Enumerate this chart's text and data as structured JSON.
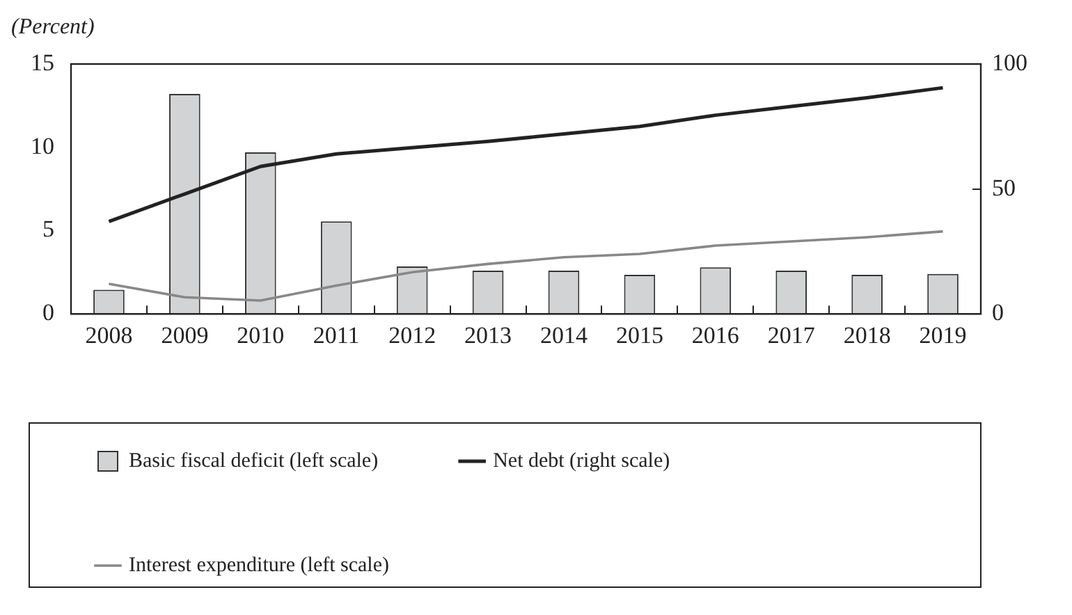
{
  "chart_data": {
    "type": "bar",
    "ylabel": "(Percent)",
    "categories": [
      "2008",
      "2009",
      "2010",
      "2011",
      "2012",
      "2013",
      "2014",
      "2015",
      "2016",
      "2017",
      "2018",
      "2019"
    ],
    "series": [
      {
        "name": "Basic fiscal deficit (left scale)",
        "color": "#d1d3d4",
        "values": [
          1.45,
          13.2,
          9.7,
          5.55,
          2.85,
          2.6,
          2.6,
          2.35,
          2.8,
          2.6,
          2.35,
          2.4
        ]
      },
      {
        "name": "Net debt (right scale)",
        "type": "line",
        "axis": "y2",
        "color": "#222222",
        "values": [
          37,
          48,
          59,
          64,
          66.5,
          69,
          72,
          75,
          79.5,
          83,
          86.5,
          90.5
        ]
      },
      {
        "name": "Interest expenditure (left scale)",
        "type": "line",
        "color": "#888888",
        "values": [
          1.8,
          1.0,
          0.8,
          1.7,
          2.5,
          3.0,
          3.4,
          3.6,
          4.1,
          4.35,
          4.6,
          4.95
        ]
      }
    ],
    "ylim": [
      0,
      15
    ],
    "yticks": [
      0,
      5,
      10,
      15
    ],
    "y2lim": [
      0,
      100
    ],
    "y2ticks": [
      0,
      50,
      100
    ],
    "grid": false,
    "legend": "bottom"
  }
}
